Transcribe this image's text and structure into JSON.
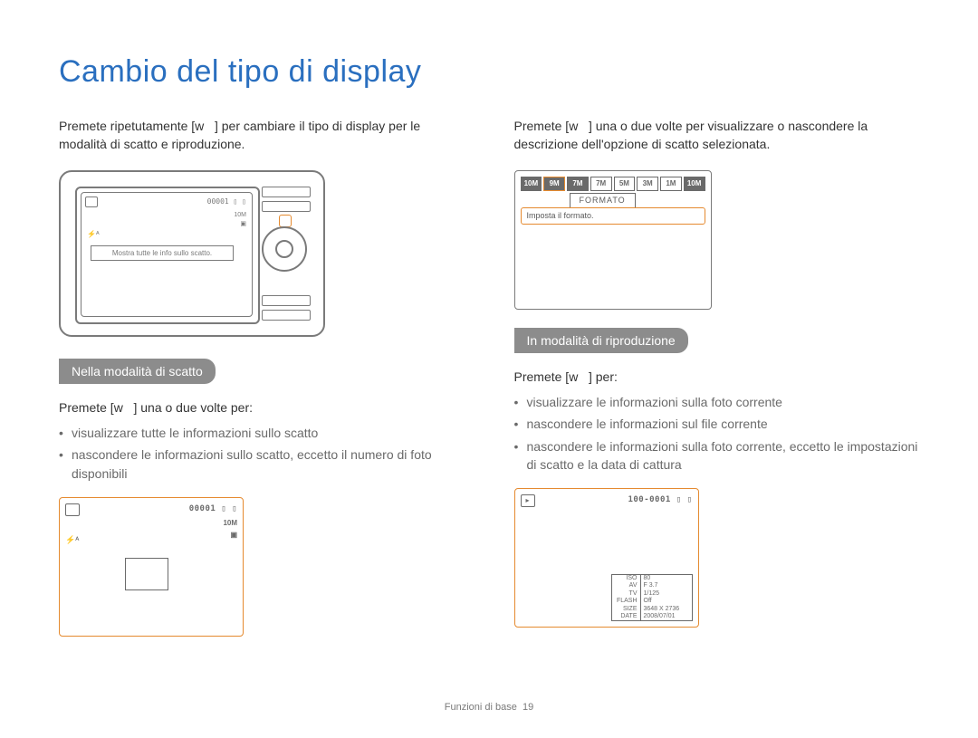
{
  "title": "Cambio del tipo di display",
  "footer": {
    "section": "Funzioni di base",
    "page": "19"
  },
  "colors": {
    "heading": "#2a6fbf",
    "pill_bg": "#8c8c8c",
    "pill_text": "#ffffff",
    "accent_border": "#e58a2f",
    "line_gray": "#7a7a7a",
    "body_text": "#333333",
    "muted_text": "#6a6a6a",
    "background": "#ffffff"
  },
  "left": {
    "intro": "Premete ripetutamente [w   ] per cambiare il tipo di display per le modalità di scatto e riproduzione.",
    "camera_hint": "Mostra tutte le info sullo scatto.",
    "camera_counter": "00001 ▯ ▯",
    "camera_side": [
      "10M",
      "▣"
    ],
    "pill": "Nella modalità di scatto",
    "sub": "Premete [w   ] una o due volte per:",
    "bullets": [
      "visualizzare tutte le informazioni sullo scatto",
      "nascondere le informazioni sullo scatto, eccetto il numero di foto disponibili"
    ],
    "panel": {
      "counter": "00001 ▯ ▯",
      "r_col": [
        "10M",
        "▣"
      ],
      "flash": "⚡ᴬ"
    }
  },
  "right": {
    "intro": "Premete [w   ] una o due volte per visualizzare o nascondere la descrizione dell'opzione di scatto selezionata.",
    "fmt": {
      "chips": [
        "10M",
        "9M",
        "7M",
        "7M",
        "5M",
        "3M",
        "1M",
        "10M"
      ],
      "chip_dark": [
        true,
        true,
        true,
        false,
        false,
        false,
        false,
        true
      ],
      "selected_index": 1,
      "label": "FORMATO",
      "hint": "Imposta il formato."
    },
    "pill": "In modalità di riproduzione",
    "sub": "Premete [w   ] per:",
    "bullets": [
      "visualizzare le informazioni sulla foto corrente",
      "nascondere le informazioni sul file corrente",
      "nascondere le informazioni sulla foto corrente, eccetto le impostazioni di scatto e la data di cattura"
    ],
    "panel": {
      "counter": "100-0001 ▯ ▯",
      "kv": [
        {
          "k": "ISO",
          "v": "80"
        },
        {
          "k": "AV",
          "v": "F 3.7"
        },
        {
          "k": "TV",
          "v": "1/125"
        },
        {
          "k": "FLASH",
          "v": "Off"
        },
        {
          "k": "SIZE",
          "v": "3648 X 2736"
        },
        {
          "k": "DATE",
          "v": "2008/07/01"
        }
      ]
    }
  }
}
